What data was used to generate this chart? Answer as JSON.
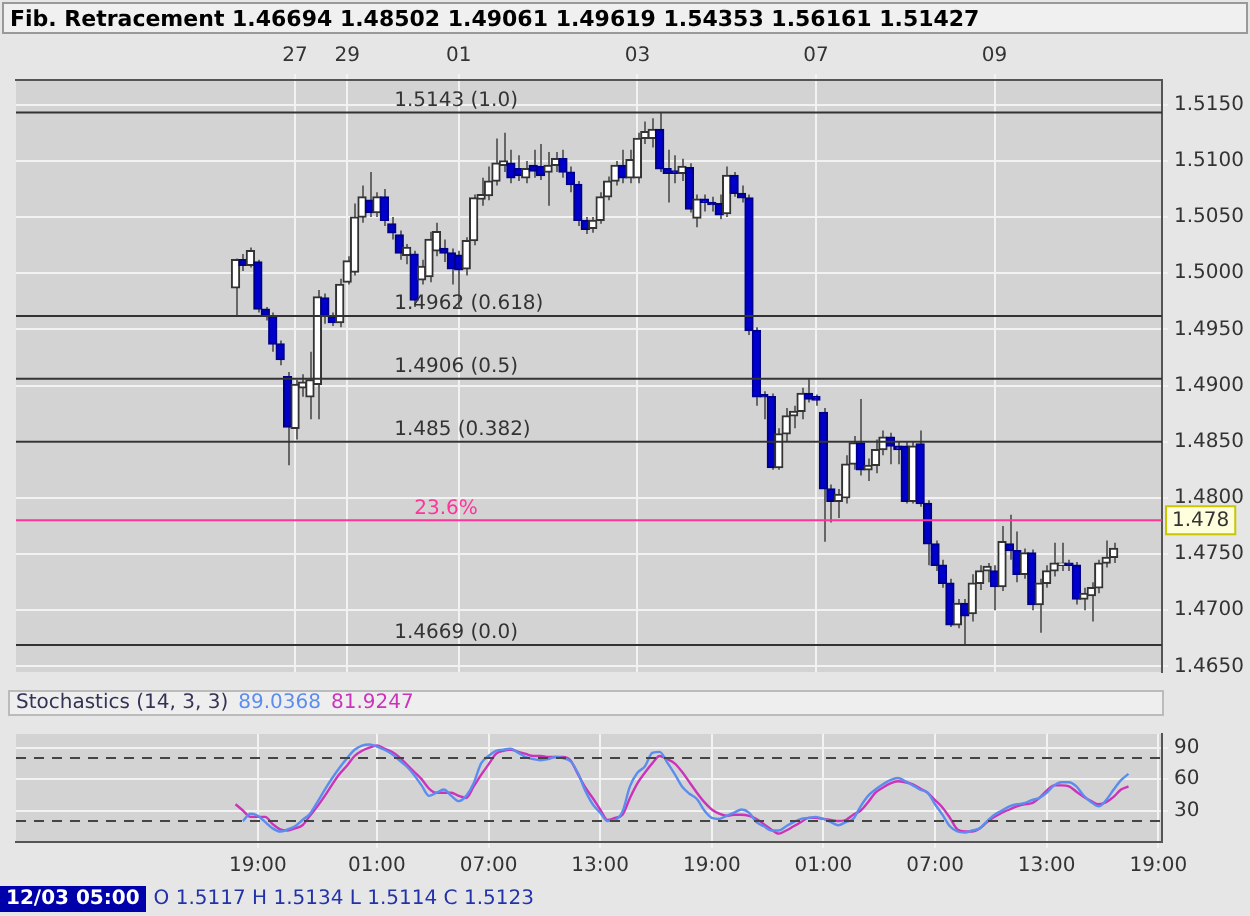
{
  "chart_data": [
    {
      "type": "candlestick",
      "title": "Fib. Retracement 1.46694 1.48502 1.49061 1.49619 1.54353 1.56161 1.51427",
      "categories": [
        null,
        null,
        null,
        null,
        null,
        null,
        null,
        null,
        null,
        null,
        null,
        null,
        null,
        null,
        null,
        null,
        null,
        null,
        null,
        null,
        null,
        null,
        null,
        null,
        null,
        null,
        null,
        null,
        null,
        null,
        null,
        null,
        null,
        null,
        null,
        null,
        null,
        "27",
        null,
        null,
        null,
        null,
        null,
        null,
        "29",
        null,
        null,
        null,
        null,
        null,
        null,
        null,
        null,
        null,
        null,
        null,
        null,
        null,
        null,
        "01",
        null,
        null,
        null,
        null,
        null,
        null,
        null,
        null,
        null,
        null,
        null,
        null,
        null,
        null,
        null,
        null,
        null,
        null,
        null,
        null,
        null,
        null,
        null,
        "03",
        null,
        null,
        null,
        null,
        null,
        null,
        null,
        null,
        null,
        null,
        null,
        null,
        null,
        null,
        null,
        null,
        null,
        null,
        null,
        null,
        null,
        null,
        null,
        "07",
        null,
        null,
        null,
        null,
        null,
        null,
        null,
        null,
        null,
        null,
        null,
        null,
        null,
        null,
        null,
        null,
        null,
        null,
        null,
        null,
        null,
        null,
        null,
        "09",
        null,
        null,
        null,
        null,
        null,
        null,
        null,
        null,
        null,
        null,
        null,
        null,
        null,
        null,
        null,
        null,
        null,
        null,
        null,
        null,
        null,
        null
      ],
      "ohlc": [
        null,
        null,
        null,
        null,
        null,
        null,
        null,
        null,
        null,
        null,
        null,
        null,
        null,
        null,
        null,
        null,
        null,
        null,
        null,
        null,
        null,
        null,
        null,
        null,
        null,
        null,
        null,
        null,
        null,
        [
          1.4987,
          1.5013,
          1.4962,
          1.5012
        ],
        [
          1.5012,
          1.5017,
          1.5002,
          1.5007
        ],
        [
          1.5007,
          1.5023,
          1.5005,
          1.502
        ],
        [
          1.501,
          1.5012,
          1.4965,
          1.4968
        ],
        [
          1.4968,
          1.497,
          1.4958,
          1.4962
        ],
        [
          1.4962,
          1.4965,
          1.493,
          1.4937
        ],
        [
          1.4937,
          1.494,
          1.4918,
          1.4923
        ],
        [
          1.4908,
          1.4912,
          1.4829,
          1.4863
        ],
        [
          1.4862,
          1.4905,
          1.4852,
          1.4901
        ],
        [
          1.4898,
          1.491,
          1.489,
          1.4903
        ],
        [
          1.489,
          1.493,
          1.487,
          1.4905
        ],
        [
          1.4901,
          1.4985,
          1.487,
          1.4979
        ],
        [
          1.4978,
          1.4982,
          1.4955,
          1.4962
        ],
        [
          1.4962,
          1.4965,
          1.4953,
          1.4956
        ],
        [
          1.4956,
          1.4995,
          1.4952,
          1.499
        ],
        [
          1.4992,
          1.5015,
          1.499,
          1.5011
        ],
        [
          1.5001,
          1.5062,
          1.4998,
          1.505
        ],
        [
          1.505,
          1.5078,
          1.5045,
          1.5068
        ],
        [
          1.5065,
          1.509,
          1.505,
          1.5054
        ],
        [
          1.5054,
          1.5072,
          1.505,
          1.5068
        ],
        [
          1.5068,
          1.5075,
          1.5042,
          1.5047
        ],
        [
          1.5044,
          1.505,
          1.503,
          1.5036
        ],
        [
          1.5034,
          1.5038,
          1.5012,
          1.5018
        ],
        [
          1.5016,
          1.5026,
          1.5008,
          1.5023
        ],
        [
          1.5017,
          1.502,
          1.497,
          1.4976
        ],
        [
          1.4994,
          1.5012,
          1.499,
          1.5006
        ],
        [
          1.4997,
          1.5037,
          1.4992,
          1.503
        ],
        [
          1.502,
          1.5045,
          1.5015,
          1.5037
        ],
        [
          1.5022,
          1.503,
          1.501,
          1.5018
        ],
        [
          1.5018,
          1.5022,
          1.499,
          1.5004
        ],
        [
          1.5016,
          1.502,
          1.497,
          1.5003
        ],
        [
          1.5004,
          1.5032,
          1.4998,
          1.5029
        ],
        [
          1.5029,
          1.507,
          1.5025,
          1.5067
        ],
        [
          1.5066,
          1.5085,
          1.506,
          1.507
        ],
        [
          1.5069,
          1.5095,
          1.5065,
          1.5082
        ],
        [
          1.5082,
          1.512,
          1.5078,
          1.5098
        ],
        [
          1.5096,
          1.5125,
          1.509,
          1.51
        ],
        [
          1.5098,
          1.511,
          1.508,
          1.5085
        ],
        [
          1.5093,
          1.5105,
          1.5082,
          1.5087
        ],
        [
          1.5085,
          1.51,
          1.508,
          1.5093
        ],
        [
          1.5096,
          1.511,
          1.5085,
          1.5091
        ],
        [
          1.5095,
          1.5115,
          1.5083,
          1.5087
        ],
        [
          1.509,
          1.5108,
          1.506,
          1.5096
        ],
        [
          1.5096,
          1.5108,
          1.509,
          1.5102
        ],
        [
          1.5102,
          1.511,
          1.5085,
          1.509
        ],
        [
          1.509,
          1.5095,
          1.5072,
          1.5079
        ],
        [
          1.5079,
          1.5082,
          1.5042,
          1.5047
        ],
        [
          1.5047,
          1.505,
          1.5035,
          1.5039
        ],
        [
          1.504,
          1.505,
          1.5036,
          1.5047
        ],
        [
          1.5047,
          1.5072,
          1.5044,
          1.5068
        ],
        [
          1.5068,
          1.5086,
          1.5065,
          1.5082
        ],
        [
          1.5082,
          1.51,
          1.5078,
          1.5096
        ],
        [
          1.5096,
          1.511,
          1.508,
          1.5085
        ],
        [
          1.5085,
          1.511,
          1.508,
          1.5101
        ],
        [
          1.5085,
          1.5125,
          1.508,
          1.512
        ],
        [
          1.512,
          1.5135,
          1.5115,
          1.5126
        ],
        [
          1.512,
          1.5138,
          1.5112,
          1.5128
        ],
        [
          1.5128,
          1.5143,
          1.509,
          1.5093
        ],
        [
          1.5093,
          1.511,
          1.5063,
          1.5089
        ],
        [
          1.5091,
          1.5105,
          1.508,
          1.5089
        ],
        [
          1.5089,
          1.5102,
          1.5082,
          1.5095
        ],
        [
          1.5094,
          1.5098,
          1.5054,
          1.5057
        ],
        [
          1.5049,
          1.507,
          1.5041,
          1.5066
        ],
        [
          1.5066,
          1.507,
          1.5055,
          1.5063
        ],
        [
          1.5063,
          1.5068,
          1.5055,
          1.5061
        ],
        [
          1.5062,
          1.507,
          1.5048,
          1.5052
        ],
        [
          1.5053,
          1.5095,
          1.505,
          1.5087
        ],
        [
          1.5087,
          1.509,
          1.5068,
          1.5071
        ],
        [
          1.5071,
          1.5078,
          1.5063,
          1.5067
        ],
        [
          1.5067,
          1.507,
          1.4945,
          1.4949
        ],
        [
          1.4949,
          1.4952,
          1.4882,
          1.489
        ],
        [
          1.4892,
          1.4895,
          1.487,
          1.489
        ],
        [
          1.489,
          1.4893,
          1.4825,
          1.4827
        ],
        [
          1.4827,
          1.4862,
          1.4825,
          1.4857
        ],
        [
          1.4857,
          1.488,
          1.485,
          1.4873
        ],
        [
          1.4873,
          1.4882,
          1.4862,
          1.4877
        ],
        [
          1.4877,
          1.4898,
          1.487,
          1.4893
        ],
        [
          1.4893,
          1.4906,
          1.4885,
          1.4888
        ],
        [
          1.489,
          1.4892,
          1.4882,
          1.4887
        ],
        [
          1.4876,
          1.488,
          1.4761,
          1.4808
        ],
        [
          1.4808,
          1.4812,
          1.4778,
          1.4797
        ],
        [
          1.4797,
          1.4808,
          1.4782,
          1.4803
        ],
        [
          1.48,
          1.4838,
          1.4795,
          1.483
        ],
        [
          1.483,
          1.4855,
          1.4825,
          1.4849
        ],
        [
          1.4849,
          1.4888,
          1.482,
          1.4825
        ],
        [
          1.4825,
          1.4835,
          1.4815,
          1.4829
        ],
        [
          1.4829,
          1.4852,
          1.4822,
          1.4843
        ],
        [
          1.4843,
          1.486,
          1.4838,
          1.4854
        ],
        [
          1.4854,
          1.4858,
          1.483,
          1.4846
        ],
        [
          1.4846,
          1.485,
          1.483,
          1.4843
        ],
        [
          1.4846,
          1.485,
          1.4795,
          1.4797
        ],
        [
          1.4797,
          1.485,
          1.4795,
          1.4846
        ],
        [
          1.4848,
          1.486,
          1.4792,
          1.4795
        ],
        [
          1.4795,
          1.4798,
          1.474,
          1.4759
        ],
        [
          1.4759,
          1.4762,
          1.4735,
          1.474
        ],
        [
          1.474,
          1.4745,
          1.472,
          1.4724
        ],
        [
          1.4724,
          1.4728,
          1.4685,
          1.4687
        ],
        [
          1.4687,
          1.471,
          1.4684,
          1.4706
        ],
        [
          1.4706,
          1.471,
          1.4669,
          1.4695
        ],
        [
          1.4697,
          1.4732,
          1.469,
          1.4724
        ],
        [
          1.4724,
          1.474,
          1.4718,
          1.4735
        ],
        [
          1.4735,
          1.4742,
          1.4725,
          1.4739
        ],
        [
          1.4735,
          1.474,
          1.47,
          1.4721
        ],
        [
          1.4721,
          1.4775,
          1.4717,
          1.4761
        ],
        [
          1.4759,
          1.4785,
          1.4745,
          1.4753
        ],
        [
          1.4753,
          1.477,
          1.4725,
          1.4732
        ],
        [
          1.4732,
          1.4755,
          1.4728,
          1.4751
        ],
        [
          1.4751,
          1.4754,
          1.47,
          1.4705
        ],
        [
          1.4705,
          1.4728,
          1.468,
          1.4724
        ],
        [
          1.4724,
          1.474,
          1.472,
          1.4735
        ],
        [
          1.4735,
          1.476,
          1.473,
          1.4742
        ],
        [
          1.474,
          1.476,
          1.4735,
          1.4742
        ],
        [
          1.4742,
          1.4745,
          1.4735,
          1.474
        ],
        [
          1.474,
          1.4743,
          1.4705,
          1.471
        ],
        [
          1.471,
          1.472,
          1.47,
          1.4715
        ],
        [
          1.4713,
          1.4725,
          1.469,
          1.472
        ],
        [
          1.472,
          1.4745,
          1.4715,
          1.4742
        ],
        [
          1.4742,
          1.4762,
          1.4738,
          1.4747
        ],
        [
          1.4747,
          1.476,
          1.4742,
          1.4755
        ],
        null,
        null,
        null,
        null,
        null,
        null
      ],
      "ylim": [
        1.4645,
        1.5172
      ],
      "yticks": [
        {
          "value": 1.465,
          "label": "1.4650"
        },
        {
          "value": 1.47,
          "label": "1.4700"
        },
        {
          "value": 1.475,
          "label": "1.4750"
        },
        {
          "value": 1.48,
          "label": "1.4800"
        },
        {
          "value": 1.485,
          "label": "1.4850"
        },
        {
          "value": 1.49,
          "label": "1.4900"
        },
        {
          "value": 1.495,
          "label": "1.4950"
        },
        {
          "value": 1.5,
          "label": "1.5000"
        },
        {
          "value": 1.505,
          "label": "1.5050"
        },
        {
          "value": 1.51,
          "label": "1.5100"
        },
        {
          "value": 1.515,
          "label": "1.5150"
        }
      ],
      "grid": true,
      "ref_lines": [
        {
          "axis": "y",
          "value": 1.5143,
          "label": "1.5143 (1.0)",
          "color": "#333333"
        },
        {
          "axis": "y",
          "value": 1.4962,
          "label": "1.4962 (0.618)",
          "color": "#333333"
        },
        {
          "axis": "y",
          "value": 1.4906,
          "label": "1.4906 (0.5)",
          "color": "#333333"
        },
        {
          "axis": "y",
          "value": 1.485,
          "label": "1.485 (0.382)",
          "color": "#333333"
        },
        {
          "axis": "y",
          "value": 1.4669,
          "label": "1.4669 (0.0)",
          "color": "#333333"
        },
        {
          "axis": "y",
          "value": 1.478,
          "label": "1.478",
          "color": "#ff3399"
        }
      ],
      "annotations": [
        {
          "text": "23.6%",
          "y": 1.478
        },
        "12/03 05:00",
        "O 1.5117 H 1.5134 L 1.5114 C 1.5123"
      ]
    },
    {
      "type": "line",
      "title": "Stochastics (14, 3, 3)",
      "legend": "top left",
      "categories": [
        null,
        null,
        null,
        null,
        null,
        null,
        null,
        null,
        null,
        null,
        null,
        null,
        null,
        null,
        null,
        null,
        null,
        null,
        null,
        null,
        null,
        null,
        null,
        null,
        null,
        null,
        null,
        null,
        null,
        null,
        null,
        null,
        "19:00",
        null,
        null,
        null,
        null,
        null,
        null,
        null,
        null,
        null,
        null,
        null,
        null,
        null,
        null,
        null,
        "01:00",
        null,
        null,
        null,
        null,
        null,
        null,
        null,
        null,
        null,
        null,
        null,
        null,
        null,
        null,
        "07:00",
        null,
        null,
        null,
        null,
        null,
        null,
        null,
        null,
        null,
        null,
        null,
        null,
        null,
        null,
        "13:00",
        null,
        null,
        null,
        null,
        null,
        null,
        null,
        null,
        null,
        null,
        null,
        null,
        null,
        null,
        "19:00",
        null,
        null,
        null,
        null,
        null,
        null,
        null,
        null,
        null,
        null,
        null,
        null,
        null,
        null,
        "01:00",
        null,
        null,
        null,
        null,
        null,
        null,
        null,
        null,
        null,
        null,
        null,
        null,
        null,
        null,
        "07:00",
        null,
        null,
        null,
        null,
        null,
        null,
        null,
        null,
        null,
        null,
        null,
        null,
        null,
        null,
        "13:00",
        null,
        null,
        null,
        null,
        null,
        null,
        null,
        null,
        null,
        null,
        null,
        null,
        null,
        null,
        "19:00"
      ],
      "ylim": [
        0,
        103
      ],
      "yticks": [
        30,
        60,
        90
      ],
      "grid": true,
      "ref_lines": [
        {
          "axis": "y",
          "value": 80,
          "color": "#444444",
          "line_style": "dashed"
        },
        {
          "axis": "y",
          "value": 20,
          "color": "#444444",
          "line_style": "dashed"
        }
      ],
      "series": [
        {
          "name": "89.0368",
          "color": "#5b8def",
          "values": [
            null,
            null,
            null,
            null,
            null,
            null,
            null,
            null,
            null,
            null,
            null,
            null,
            null,
            null,
            null,
            null,
            null,
            null,
            null,
            null,
            null,
            null,
            null,
            null,
            null,
            null,
            null,
            null,
            null,
            null,
            20,
            27,
            25,
            19,
            13,
            10,
            12,
            15,
            21,
            27,
            38,
            50,
            61,
            71,
            80,
            88,
            92,
            93,
            91,
            88,
            84,
            78,
            72,
            64,
            54,
            44,
            47,
            50,
            44,
            39,
            44,
            56,
            75,
            82,
            87,
            88,
            89,
            85,
            81,
            79,
            78,
            79,
            81,
            80,
            77,
            66,
            49,
            36,
            28,
            20,
            21,
            29,
            53,
            66,
            72,
            85,
            86,
            76,
            65,
            53,
            46,
            41,
            30,
            23,
            22,
            25,
            28,
            31,
            28,
            19,
            15,
            11,
            11,
            15,
            19,
            22,
            23,
            24,
            22,
            19,
            16,
            19,
            22,
            34,
            44,
            50,
            55,
            59,
            61,
            58,
            54,
            50,
            47,
            36,
            26,
            15,
            10,
            9,
            11,
            13,
            20,
            26,
            30,
            34,
            36,
            37,
            40,
            42,
            47,
            54,
            57,
            57,
            53,
            44,
            38,
            34,
            40,
            50,
            59,
            65,
            null,
            null,
            null,
            null
          ]
        },
        {
          "name": "81.9247",
          "color": "#cc33bb",
          "values": [
            null,
            null,
            null,
            null,
            null,
            null,
            null,
            null,
            null,
            null,
            null,
            null,
            null,
            null,
            null,
            null,
            null,
            null,
            null,
            null,
            null,
            null,
            null,
            null,
            null,
            null,
            null,
            null,
            null,
            36,
            30,
            24,
            24,
            24,
            17,
            12,
            11,
            13,
            16,
            25,
            34,
            44,
            55,
            65,
            73,
            82,
            87,
            90,
            92,
            89,
            86,
            81,
            74,
            67,
            60,
            51,
            47,
            47,
            47,
            44,
            42,
            53,
            64,
            74,
            84,
            87,
            88,
            86,
            84,
            82,
            82,
            81,
            81,
            81,
            78,
            65,
            52,
            42,
            31,
            21,
            23,
            26,
            42,
            56,
            66,
            75,
            82,
            79,
            75,
            67,
            57,
            47,
            38,
            31,
            27,
            25,
            26,
            26,
            25,
            22,
            17,
            12,
            8,
            11,
            15,
            19,
            23,
            23,
            22,
            21,
            20,
            21,
            26,
            30,
            38,
            47,
            52,
            56,
            58,
            57,
            55,
            51,
            47,
            40,
            33,
            23,
            12,
            10,
            10,
            13,
            19,
            24,
            28,
            31,
            34,
            36,
            37,
            42,
            49,
            54,
            54,
            53,
            48,
            43,
            39,
            36,
            38,
            43,
            50,
            53,
            null,
            null,
            null,
            null
          ]
        }
      ]
    }
  ]
}
